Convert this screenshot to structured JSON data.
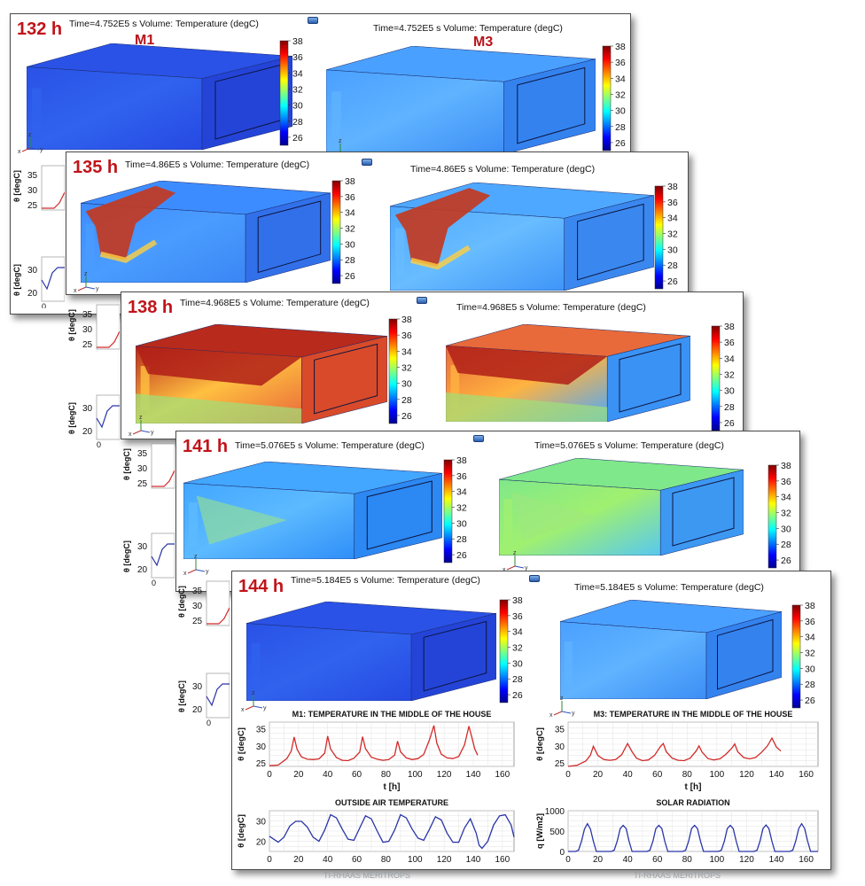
{
  "panels": [
    {
      "hour": "132 h",
      "time_left": "Time=4.752E5 s  Volume: Temperature (degC)",
      "time_right": "Time=4.752E5 s  Volume: Temperature (degC)",
      "model_left": "M1",
      "model_right": "M3",
      "state": "cool"
    },
    {
      "hour": "135 h",
      "time_left": "Time=4.86E5 s  Volume: Temperature (degC)",
      "time_right": "Time=4.86E5 s  Volume: Temperature (degC)",
      "state": "plume"
    },
    {
      "hour": "138 h",
      "time_left": "Time=4.968E5 s  Volume: Temperature (degC)",
      "time_right": "Time=4.968E5 s  Volume: Temperature (degC)",
      "state": "hot"
    },
    {
      "hour": "141 h",
      "time_left": "Time=5.076E5 s  Volume: Temperature (degC)",
      "time_right": "Time=5.076E5 s  Volume: Temperature (degC)",
      "state": "warm"
    },
    {
      "hour": "144 h",
      "time_left": "Time=5.184E5 s  Volume: Temperature (degC)",
      "time_right": "Time=5.184E5 s  Volume: Temperature (degC)",
      "state": "cool"
    }
  ],
  "colorbar": {
    "ticks": [
      "38",
      "36",
      "34",
      "32",
      "30",
      "28",
      "26"
    ],
    "min": 25,
    "max": 38
  },
  "axis_triad": {
    "x": "x",
    "y": "y",
    "z": "z"
  },
  "chart_titles": {
    "m1": "M1:  TEMPERATURE IN THE MIDDLE OF THE HOUSE",
    "m3": "M3:  TEMPERATURE IN THE MIDDLE OF THE HOUSE",
    "outside": "OUTSIDE AIR TEMPERATURE",
    "solar": "SOLAR RADIATION"
  },
  "footer": {
    "left": "TI-RHAAS MERITROPS",
    "right": "TI-RHAAS MERITROPS"
  },
  "colors": {
    "red_line": "#d22a2a",
    "blue_line": "#2a35a8",
    "accent_red": "#c0141a"
  },
  "chart_data": [
    {
      "type": "line",
      "title": "M1:  TEMPERATURE IN THE MIDDLE OF THE HOUSE",
      "xlabel": "t [h]",
      "ylabel": "θ [degC]",
      "xlim": [
        0,
        168
      ],
      "ylim": [
        24,
        37
      ],
      "xticks": [
        0,
        20,
        40,
        60,
        80,
        100,
        120,
        140,
        160
      ],
      "yticks": [
        25,
        30,
        35
      ],
      "x": [
        0,
        6,
        12,
        15,
        17,
        19,
        22,
        26,
        30,
        34,
        38,
        40,
        42,
        46,
        50,
        54,
        58,
        62,
        64,
        66,
        70,
        74,
        78,
        82,
        86,
        88,
        90,
        94,
        98,
        102,
        106,
        110,
        113,
        115,
        118,
        122,
        126,
        130,
        134,
        137,
        139,
        141,
        143
      ],
      "series": [
        {
          "values": [
            24.2,
            24.4,
            26.3,
            28.5,
            32.6,
            29.0,
            26.8,
            26.1,
            26.0,
            26.2,
            27.9,
            32.9,
            29.1,
            26.6,
            25.8,
            25.7,
            26.4,
            28.2,
            32.7,
            29.2,
            26.7,
            26.1,
            25.8,
            26.0,
            27.3,
            31.4,
            28.3,
            26.5,
            26.0,
            26.3,
            27.5,
            31.9,
            36.0,
            30.8,
            27.6,
            26.5,
            26.3,
            26.9,
            30.3,
            35.8,
            32.5,
            29.2,
            27.3
          ]
        }
      ]
    },
    {
      "type": "line",
      "title": "M3:  TEMPERATURE IN THE MIDDLE OF THE HOUSE",
      "xlabel": "t [h]",
      "ylabel": "θ [degC]",
      "xlim": [
        0,
        168
      ],
      "ylim": [
        24,
        37
      ],
      "xticks": [
        0,
        20,
        40,
        60,
        80,
        100,
        120,
        140,
        160
      ],
      "yticks": [
        25,
        30,
        35
      ],
      "x": [
        0,
        6,
        12,
        15,
        17,
        20,
        24,
        28,
        32,
        36,
        40,
        43,
        46,
        50,
        54,
        58,
        62,
        64,
        66,
        70,
        74,
        78,
        82,
        86,
        88,
        90,
        94,
        98,
        102,
        106,
        110,
        112,
        114,
        118,
        122,
        126,
        130,
        134,
        137,
        140,
        143
      ],
      "series": [
        {
          "values": [
            24.0,
            24.3,
            25.6,
            27.3,
            29.9,
            27.2,
            26.0,
            25.8,
            26.0,
            27.4,
            30.7,
            28.3,
            26.4,
            25.7,
            25.9,
            27.2,
            29.8,
            30.7,
            28.3,
            26.4,
            25.8,
            25.7,
            26.4,
            28.5,
            30.0,
            28.2,
            26.3,
            25.9,
            26.2,
            27.5,
            29.3,
            30.6,
            28.3,
            26.6,
            26.2,
            26.6,
            28.1,
            30.0,
            32.3,
            29.7,
            28.5
          ]
        }
      ]
    },
    {
      "type": "line",
      "title": "OUTSIDE AIR TEMPERATURE",
      "xlabel": "",
      "ylabel": "θ [degC]",
      "xlim": [
        0,
        168
      ],
      "ylim": [
        15,
        35
      ],
      "xticks": [
        0,
        20,
        40,
        60,
        80,
        100,
        120,
        140,
        160
      ],
      "yticks": [
        20,
        30
      ],
      "x": [
        0,
        3,
        6,
        10,
        14,
        18,
        22,
        26,
        30,
        34,
        38,
        42,
        46,
        50,
        54,
        58,
        62,
        66,
        70,
        74,
        78,
        82,
        86,
        90,
        94,
        98,
        102,
        106,
        110,
        114,
        118,
        122,
        126,
        130,
        134,
        138,
        142,
        144,
        146,
        150,
        154,
        158,
        162,
        166,
        168
      ],
      "series": [
        {
          "values": [
            22.5,
            21.0,
            19.5,
            22.0,
            27.5,
            29.8,
            29.8,
            27.0,
            22.0,
            20.0,
            25.5,
            33.0,
            31.5,
            26.0,
            21.0,
            20.5,
            26.5,
            32.5,
            31.0,
            25.0,
            19.5,
            20.0,
            25.5,
            33.0,
            31.5,
            26.0,
            21.5,
            20.5,
            26.0,
            32.0,
            30.5,
            24.0,
            19.5,
            19.5,
            26.5,
            31.0,
            24.0,
            18.0,
            16.5,
            20.0,
            28.0,
            32.5,
            33.0,
            28.0,
            22.0
          ]
        }
      ]
    },
    {
      "type": "line",
      "title": "SOLAR RADIATION",
      "xlabel": "",
      "ylabel": "q [W/m2]",
      "xlim": [
        0,
        168
      ],
      "ylim": [
        0,
        1000
      ],
      "xticks": [
        0,
        20,
        40,
        60,
        80,
        100,
        120,
        140,
        160
      ],
      "yticks": [
        0,
        500,
        1000
      ],
      "x": [
        0,
        5,
        7,
        9,
        11,
        13,
        15,
        17,
        19,
        29,
        31,
        33,
        35,
        37,
        39,
        41,
        43,
        53,
        55,
        57,
        59,
        61,
        63,
        65,
        67,
        77,
        79,
        81,
        83,
        85,
        87,
        89,
        91,
        101,
        103,
        105,
        107,
        109,
        111,
        113,
        115,
        125,
        127,
        129,
        131,
        133,
        135,
        137,
        139,
        149,
        151,
        153,
        155,
        157,
        159,
        161,
        163,
        168
      ],
      "series": [
        {
          "values": [
            0,
            0,
            30,
            250,
            550,
            680,
            550,
            250,
            0,
            0,
            30,
            250,
            560,
            640,
            560,
            250,
            0,
            0,
            30,
            250,
            560,
            640,
            560,
            250,
            0,
            0,
            30,
            250,
            560,
            640,
            560,
            250,
            0,
            0,
            30,
            250,
            560,
            640,
            560,
            250,
            0,
            0,
            30,
            250,
            560,
            650,
            560,
            250,
            0,
            0,
            30,
            250,
            560,
            680,
            560,
            250,
            0,
            0
          ]
        }
      ]
    }
  ]
}
